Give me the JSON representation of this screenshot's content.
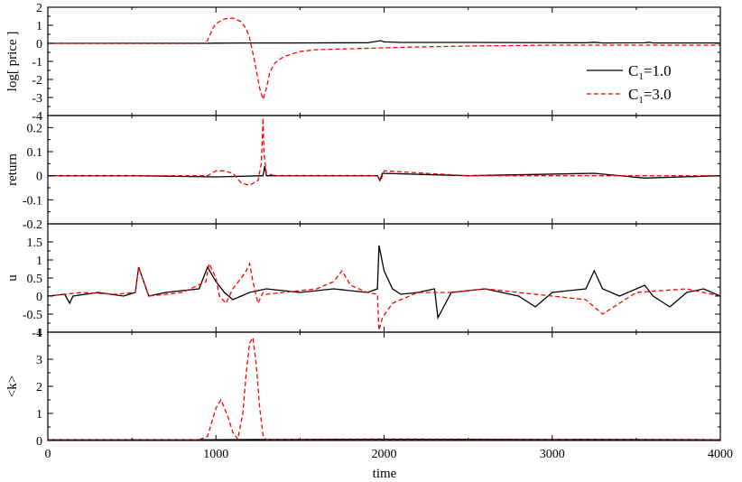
{
  "chart_data": {
    "type": "line",
    "shared_x": {
      "label": "time",
      "lim": [
        0,
        4000
      ],
      "ticks": [
        0,
        1000,
        2000,
        3000,
        4000
      ],
      "tick_labels": [
        "0",
        "1000",
        "2000",
        "3000",
        "4000"
      ]
    },
    "grid": false,
    "legend": {
      "placement": "right, top panel",
      "entries": [
        {
          "label_main": "C",
          "label_sub": "1",
          "label_rest": "=1.0",
          "color": "#000000",
          "dash": "solid"
        },
        {
          "label_main": "C",
          "label_sub": "1",
          "label_rest": "=3.0",
          "color": "#ff0000",
          "dash": "dashed"
        }
      ]
    },
    "panels": [
      {
        "id": "log-price",
        "ylabel": "log[ price ]",
        "ylim": [
          -4,
          2
        ],
        "yticks": [
          -4,
          -3,
          -2,
          -1,
          0,
          1,
          2
        ],
        "ytick_labels": [
          "-4",
          "-3",
          "-2",
          "-1",
          "0",
          "1",
          "2"
        ],
        "series": [
          {
            "style": "solid",
            "color": "#000000",
            "x": [
              0,
              950,
              1000,
              1200,
              1400,
              1900,
              1950,
              1980,
              2000,
              2100,
              2500,
              3200,
              3250,
              3300,
              3550,
              3580,
              3600,
              4000
            ],
            "y": [
              0,
              0,
              0.01,
              0.02,
              0.02,
              0.03,
              0.1,
              0.15,
              0.08,
              0.05,
              0.05,
              0.03,
              0.06,
              0.02,
              0.03,
              0.06,
              0.02,
              0.02
            ]
          },
          {
            "style": "dashed",
            "color": "#ff0000",
            "x": [
              0,
              930,
              950,
              980,
              1000,
              1050,
              1100,
              1150,
              1180,
              1200,
              1230,
              1260,
              1280,
              1300,
              1320,
              1350,
              1400,
              1500,
              1600,
              1800,
              2000,
              2200,
              2500,
              3000,
              3500,
              4000
            ],
            "y": [
              0,
              0.02,
              0.15,
              0.8,
              1.1,
              1.35,
              1.4,
              1.2,
              0.8,
              0.3,
              -1.0,
              -2.5,
              -3.1,
              -2.5,
              -1.6,
              -1.1,
              -0.75,
              -0.45,
              -0.35,
              -0.3,
              -0.25,
              -0.2,
              -0.15,
              -0.1,
              -0.1,
              -0.1
            ]
          }
        ]
      },
      {
        "id": "return",
        "ylabel": "return",
        "ylim": [
          -0.2,
          0.25
        ],
        "yticks": [
          -0.2,
          -0.1,
          0,
          0.1,
          0.2
        ],
        "ytick_labels": [
          "-0.2",
          "-0.1",
          "0",
          "0.1",
          "0.2"
        ],
        "series": [
          {
            "style": "solid",
            "color": "#000000",
            "x": [
              0,
              500,
              1000,
              1280,
              1290,
              1300,
              1960,
              1975,
              1990,
              2500,
              3250,
              3550,
              4000
            ],
            "y": [
              0,
              0,
              -0.005,
              0,
              0.04,
              0,
              0,
              -0.02,
              0.01,
              0,
              0.01,
              -0.01,
              0
            ]
          },
          {
            "style": "dashed",
            "color": "#ff0000",
            "x": [
              0,
              950,
              1000,
              1050,
              1100,
              1150,
              1200,
              1250,
              1270,
              1280,
              1285,
              1300,
              1350,
              1960,
              1980,
              2000,
              2500,
              3000,
              3500,
              4000
            ],
            "y": [
              0,
              0,
              0.02,
              0.02,
              0.01,
              -0.03,
              -0.04,
              -0.02,
              0.05,
              0.24,
              0.1,
              0.01,
              0,
              0,
              -0.02,
              0.02,
              0,
              0,
              0,
              0
            ]
          }
        ]
      },
      {
        "id": "u",
        "ylabel": "u",
        "ylim": [
          -1,
          2
        ],
        "yticks": [
          -1,
          -0.5,
          0,
          0.5,
          1,
          1.5
        ],
        "ytick_labels": [
          "-1",
          "-0.5",
          "0",
          "0.5",
          "1",
          "1.5"
        ],
        "series": [
          {
            "style": "solid",
            "color": "#000000",
            "x": [
              0,
              100,
              130,
              150,
              300,
              450,
              520,
              540,
              600,
              700,
              900,
              950,
              1000,
              1050,
              1100,
              1200,
              1300,
              1500,
              1700,
              1900,
              1960,
              1970,
              2000,
              2050,
              2100,
              2200,
              2300,
              2320,
              2400,
              2600,
              2800,
              2900,
              3000,
              3200,
              3250,
              3300,
              3400,
              3550,
              3600,
              3700,
              3800,
              3900,
              4000
            ],
            "y": [
              0,
              0.05,
              -0.2,
              0,
              0.1,
              0,
              0.1,
              0.8,
              0,
              0.1,
              0.2,
              0.8,
              0.4,
              0.1,
              -0.1,
              0.1,
              0.2,
              0.1,
              0.2,
              0.1,
              0.2,
              1.4,
              0.7,
              0.2,
              0.05,
              0.1,
              0.2,
              -0.6,
              0.1,
              0.2,
              0,
              -0.3,
              0.1,
              0.2,
              0.7,
              0.2,
              0,
              0.3,
              0,
              -0.3,
              0.1,
              0.2,
              0
            ]
          },
          {
            "style": "dashed",
            "color": "#ff0000",
            "x": [
              0,
              200,
              400,
              520,
              540,
              600,
              800,
              940,
              960,
              1000,
              1020,
              1060,
              1100,
              1150,
              1180,
              1200,
              1220,
              1250,
              1280,
              1300,
              1400,
              1600,
              1700,
              1750,
              1800,
              1900,
              1960,
              1970,
              1990,
              2050,
              2100,
              2200,
              2400,
              2600,
              2800,
              3000,
              3200,
              3250,
              3300,
              3500,
              3800,
              4000
            ],
            "y": [
              0,
              0.1,
              0.05,
              0.1,
              0.8,
              0,
              0.1,
              0.4,
              0.9,
              0.5,
              0,
              -0.2,
              0.2,
              0.5,
              0.7,
              0.9,
              0.4,
              -0.2,
              0.1,
              0.05,
              0.1,
              0.2,
              0.4,
              0.7,
              0.3,
              0.1,
              0.05,
              -0.95,
              -0.6,
              -0.2,
              -0.1,
              0.1,
              0.1,
              0.2,
              0.1,
              0,
              -0.1,
              -0.3,
              -0.5,
              0.1,
              0.2,
              0
            ]
          }
        ]
      },
      {
        "id": "k",
        "ylabel": "<k>",
        "ylim": [
          0,
          4
        ],
        "yticks": [
          0,
          1,
          2,
          3,
          4
        ],
        "ytick_labels": [
          "0",
          "1",
          "2",
          "3",
          "4"
        ],
        "series": [
          {
            "style": "solid",
            "color": "#000000",
            "x": [
              0,
              1000,
              2000,
              4000
            ],
            "y": [
              0.03,
              0.03,
              0.05,
              0.03
            ]
          },
          {
            "style": "dashed",
            "color": "#ff0000",
            "x": [
              0,
              900,
              950,
              1000,
              1030,
              1070,
              1100,
              1130,
              1160,
              1180,
              1200,
              1220,
              1240,
              1260,
              1280,
              1300,
              1400,
              2000,
              4000
            ],
            "y": [
              0.03,
              0.03,
              0.15,
              1.2,
              1.5,
              0.9,
              0.3,
              0.05,
              1.0,
              2.5,
              3.6,
              3.8,
              2.8,
              1.2,
              0.2,
              0.03,
              0.03,
              0.03,
              0.03
            ]
          }
        ]
      }
    ]
  }
}
